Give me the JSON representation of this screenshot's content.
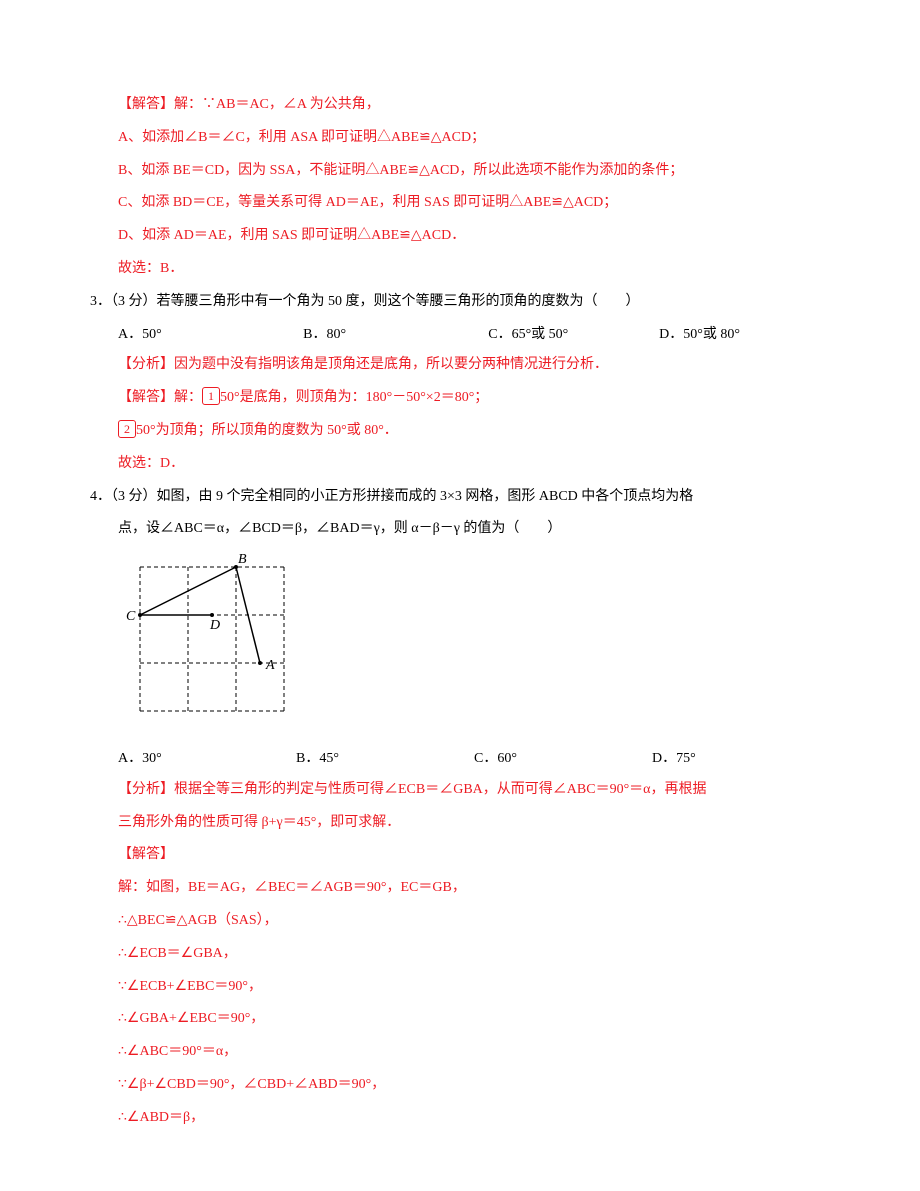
{
  "q2solution": {
    "l1": "【解答】解：∵AB＝AC，∠A 为公共角，",
    "l2": "A、如添加∠B＝∠C，利用 ASA 即可证明△ABE≌△ACD；",
    "l3": "B、如添 BE＝CD，因为 SSA，不能证明△ABE≌△ACD，所以此选项不能作为添加的条件；",
    "l4": "C、如添 BD＝CE，等量关系可得 AD＝AE，利用 SAS 即可证明△ABE≌△ACD；",
    "l5": "D、如添 AD＝AE，利用 SAS 即可证明△ABE≌△ACD．",
    "l6": "故选：B．"
  },
  "q3": {
    "stem": "3．（3 分）若等腰三角形中有一个角为 50 度，则这个等腰三角形的顶角的度数为（　　）",
    "optA": "A．50°",
    "optB": "B．80°",
    "optC": "C．65°或 50°",
    "optD": "D．50°或 80°",
    "ana": "【分析】因为题中没有指明该角是顶角还是底角，所以要分两种情况进行分析．",
    "sol1a": "【解答】解：",
    "sol1b": "50°是底角，则顶角为：180°－50°×2＝80°；",
    "sol2b": "50°为顶角；所以顶角的度数为 50°或 80°．",
    "sol3": "故选：D．"
  },
  "q4": {
    "stem1": "4．（3 分）如图，由 9 个完全相同的小正方形拼接而成的 3×3 网格，图形 ABCD 中各个顶点均为格",
    "stem2": "点，设∠ABC＝α，∠BCD＝β，∠BAD＝γ，则 α－β－γ 的值为（　　）",
    "optA": "A．30°",
    "optB": "B．45°",
    "optC": "C．60°",
    "optD": "D．75°",
    "ana1": "【分析】根据全等三角形的判定与性质可得∠ECB＝∠GBA，从而可得∠ABC＝90°＝α，再根据",
    "ana2": "三角形外角的性质可得 β+γ＝45°，即可求解．",
    "sol_h": "【解答】",
    "sol1": "解：如图，BE＝AG，∠BEC＝∠AGB＝90°，EC＝GB，",
    "sol2": "∴△BEC≌△AGB（SAS），",
    "sol3": "∴∠ECB＝∠GBA，",
    "sol4": "∵∠ECB+∠EBC＝90°，",
    "sol5": "∴∠GBA+∠EBC＝90°，",
    "sol6": "∴∠ABC＝90°＝α，",
    "sol7": "∵∠β+∠CBD＝90°，∠CBD+∠ABD＝90°，",
    "sol8": "∴∠ABD＝β，"
  },
  "figure": {
    "grid_stroke": "#000000",
    "dash": "4,3",
    "line_stroke": "#000000",
    "cell": 48,
    "labels": {
      "A": "A",
      "B": "B",
      "C": "C",
      "D": "D"
    },
    "font_size": 14
  }
}
